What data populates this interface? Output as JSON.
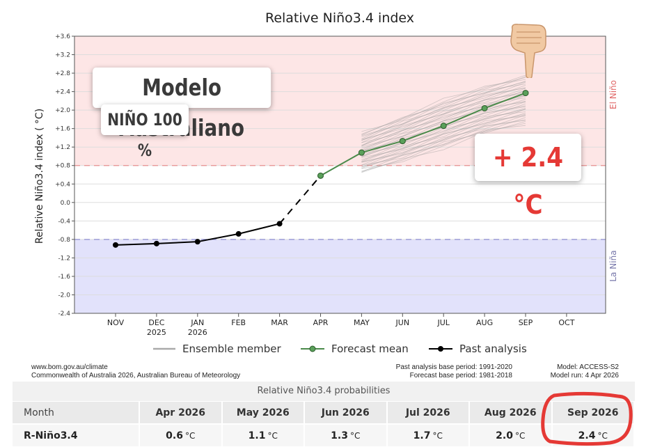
{
  "chart_data": {
    "type": "line",
    "title": "Relative Niño3.4 index",
    "ylabel": "Relative Niño3.4 index ( °C)",
    "ylim": [
      -2.4,
      3.6
    ],
    "yticks": [
      "-2.4",
      "-2.0",
      "-1.6",
      "-1.2",
      "-0.8",
      "-0.4",
      "0.0",
      "+0.4",
      "+0.8",
      "+1.2",
      "+1.6",
      "+2.0",
      "+2.4",
      "+2.8",
      "+3.2",
      "+3.6"
    ],
    "categories": [
      "NOV",
      "DEC",
      "JAN",
      "FEB",
      "MAR",
      "APR",
      "MAY",
      "JUN",
      "JUL",
      "AUG",
      "SEP",
      "OCT"
    ],
    "category_years": [
      "",
      "2025",
      "2026",
      "",
      "",
      "",
      "",
      "",
      "",
      "",
      "",
      ""
    ],
    "thresholds": {
      "el_nino": 0.8,
      "la_nina": -0.8
    },
    "region_labels": {
      "el_nino": "El Niño",
      "la_nina": "La Niña"
    },
    "series": [
      {
        "name": "Past analysis",
        "x": [
          "NOV",
          "DEC",
          "JAN",
          "FEB",
          "MAR"
        ],
        "values": [
          -0.92,
          -0.89,
          -0.85,
          -0.68,
          -0.46
        ],
        "color": "#000000"
      },
      {
        "name": "Forecast mean",
        "x": [
          "APR",
          "MAY",
          "JUN",
          "JUL",
          "AUG",
          "SEP"
        ],
        "values": [
          0.58,
          1.08,
          1.33,
          1.66,
          2.04,
          2.37
        ],
        "color": "#4a8a4a"
      }
    ],
    "ensemble": {
      "name": "Ensemble member",
      "x": [
        "MAY",
        "JUN",
        "JUL",
        "AUG",
        "SEP"
      ],
      "min": [
        0.65,
        0.9,
        1.2,
        1.5,
        1.7
      ],
      "max": [
        1.5,
        1.85,
        2.2,
        2.5,
        2.75
      ]
    },
    "legend": {
      "position": "bottom",
      "items": [
        "Ensemble member",
        "Forecast mean",
        "Past analysis"
      ]
    }
  },
  "footer": {
    "left_1": "www.bom.gov.au/climate",
    "left_2": "Commonwealth of Australia 2026, Australian Bureau of Meteorology",
    "mid_1": "Past analysis base period: 1991-2020",
    "mid_2": "Forecast base period: 1981-2018",
    "right_1": "Model: ACCESS-S2",
    "right_2": "Model run: 4 Apr 2026"
  },
  "probabilities": {
    "title": "Relative Niño3.4 probabilities",
    "header_first": "Month",
    "months": [
      "Apr 2026",
      "May 2026",
      "Jun 2026",
      "Jul 2026",
      "Aug 2026",
      "Sep 2026"
    ],
    "row_label": "R-Niño3.4",
    "values": [
      "0.6",
      "1.1",
      "1.3",
      "1.7",
      "2.0",
      "2.4"
    ],
    "unit": "°C"
  },
  "annotations": {
    "title": "Modelo Australiano",
    "subtitle": "NIÑO 100 %",
    "value": "+ 2.4 °C",
    "hand_icon": "pointing-hand-icon",
    "circle_color": "#e53935"
  }
}
